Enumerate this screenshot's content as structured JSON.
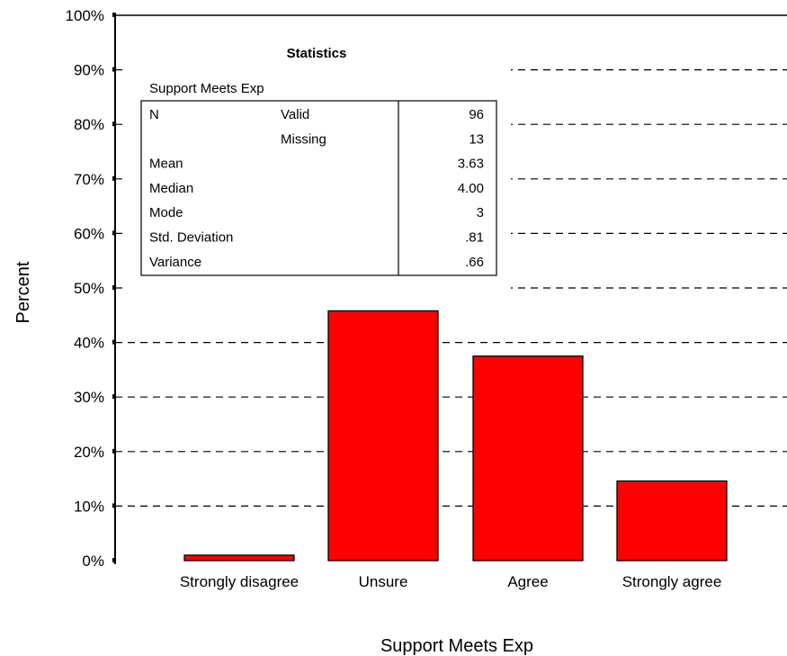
{
  "chart_data": {
    "type": "bar",
    "categories": [
      "Strongly disagree",
      "Unsure",
      "Agree",
      "Strongly agree"
    ],
    "values": [
      1.0,
      45.8,
      37.5,
      14.6
    ],
    "xlabel": "Support Meets Exp",
    "ylabel": "Percent",
    "ylim": [
      0,
      100
    ],
    "yticks": [
      "0%",
      "10%",
      "20%",
      "30%",
      "40%",
      "50%",
      "60%",
      "70%",
      "80%",
      "90%",
      "100%"
    ],
    "grid": "dashed horizontal",
    "bar_color": "#ff0000"
  },
  "statistics_table": {
    "title": "Statistics",
    "variable": "Support Meets Exp",
    "rows": [
      {
        "label": "N",
        "sublabel": "Valid",
        "value": "96"
      },
      {
        "label": "",
        "sublabel": "Missing",
        "value": "13"
      },
      {
        "label": "Mean",
        "sublabel": "",
        "value": "3.63"
      },
      {
        "label": "Median",
        "sublabel": "",
        "value": "4.00"
      },
      {
        "label": "Mode",
        "sublabel": "",
        "value": "3"
      },
      {
        "label": "Std. Deviation",
        "sublabel": "",
        "value": ".81"
      },
      {
        "label": "Variance",
        "sublabel": "",
        "value": ".66"
      }
    ]
  }
}
